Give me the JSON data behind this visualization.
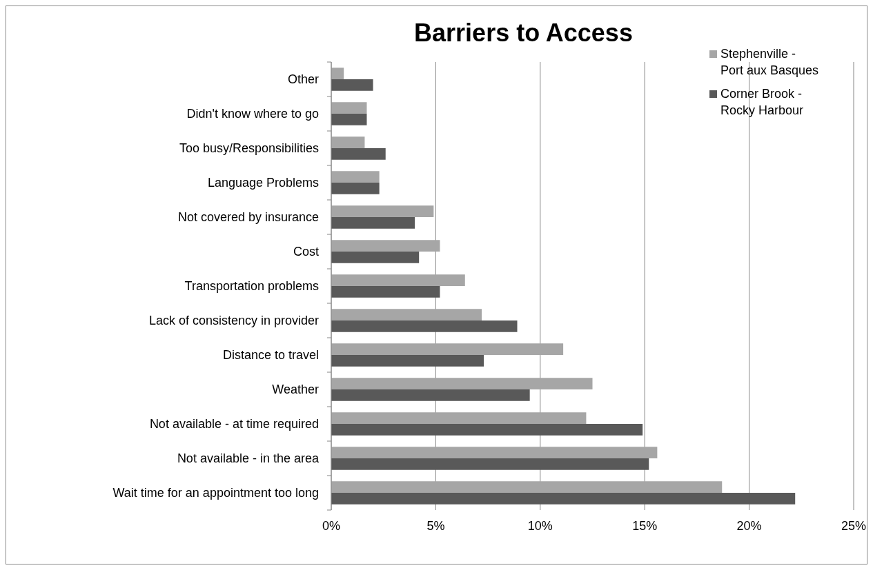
{
  "chart_data": {
    "type": "bar",
    "orientation": "horizontal",
    "title": "Barriers to Access",
    "categories": [
      "Other",
      "Didn't know where to go",
      "Too busy/Responsibilities",
      "Language Problems",
      "Not covered by insurance",
      "Cost",
      "Transportation problems",
      "Lack of consistency in provider",
      "Distance to travel",
      "Weather",
      "Not available - at time required",
      "Not available - in the area",
      "Wait time for an appointment too long"
    ],
    "series": [
      {
        "name": "Stephenville - Port aux Basques",
        "color": "#a6a6a6",
        "values": [
          0.6,
          1.7,
          1.6,
          2.3,
          4.9,
          5.2,
          6.4,
          7.2,
          11.1,
          12.5,
          12.2,
          15.6,
          18.7
        ]
      },
      {
        "name": "Corner Brook - Rocky Harbour",
        "color": "#595959",
        "values": [
          2.0,
          1.7,
          2.6,
          2.3,
          4.0,
          4.2,
          5.2,
          8.9,
          7.3,
          9.5,
          14.9,
          15.2,
          22.2
        ]
      }
    ],
    "xlim": [
      0,
      25
    ],
    "xticks": [
      {
        "value": 0,
        "label": "0%"
      },
      {
        "value": 5,
        "label": "5%"
      },
      {
        "value": 10,
        "label": "10%"
      },
      {
        "value": 15,
        "label": "15%"
      },
      {
        "value": 20,
        "label": "20%"
      },
      {
        "value": 25,
        "label": "25%"
      }
    ],
    "grid": "x",
    "legend": "top right"
  }
}
